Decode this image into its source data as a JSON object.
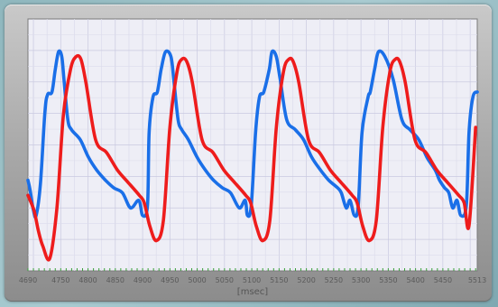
{
  "chart_data": {
    "type": "line",
    "title": "",
    "xlabel": "[msec]",
    "ylabel": "",
    "xlim": [
      4690,
      5513
    ],
    "ylim": [
      0,
      1
    ],
    "grid": true,
    "legend": "none",
    "x_ticks": [
      4690,
      4750,
      4800,
      4850,
      4900,
      4950,
      5000,
      5050,
      5100,
      5150,
      5200,
      5250,
      5300,
      5350,
      5400,
      5450,
      5513
    ],
    "series": [
      {
        "color": "#1a6fe8",
        "x": [
          4690,
          4694,
          4700,
          4705,
          4713,
          4721,
          4726,
          4734,
          4740,
          4746,
          4752,
          4756,
          4763,
          4770,
          4786,
          4801,
          4816,
          4832,
          4847,
          4863,
          4878,
          4893,
          4900,
          4909,
          4912,
          4919,
          4927,
          4934,
          4942,
          4952,
          4957,
          4965,
          4972,
          4984,
          5000,
          5015,
          5030,
          5046,
          5061,
          5077,
          5088,
          5092,
          5099,
          5107,
          5114,
          5122,
          5132,
          5137,
          5145,
          5152,
          5164,
          5180,
          5195,
          5210,
          5226,
          5241,
          5257,
          5264,
          5273,
          5280,
          5288,
          5295,
          5302,
          5313,
          5317,
          5325,
          5332,
          5344,
          5359,
          5375,
          5390,
          5406,
          5421,
          5436,
          5444,
          5453,
          5461,
          5468,
          5476,
          5483,
          5493,
          5498,
          5505,
          5513
        ],
        "y": [
          0.36,
          0.32,
          0.24,
          0.22,
          0.35,
          0.63,
          0.7,
          0.71,
          0.8,
          0.87,
          0.85,
          0.76,
          0.6,
          0.56,
          0.52,
          0.45,
          0.4,
          0.36,
          0.33,
          0.31,
          0.25,
          0.28,
          0.22,
          0.26,
          0.55,
          0.69,
          0.71,
          0.8,
          0.87,
          0.85,
          0.76,
          0.6,
          0.56,
          0.52,
          0.45,
          0.4,
          0.36,
          0.33,
          0.31,
          0.25,
          0.28,
          0.22,
          0.26,
          0.55,
          0.69,
          0.71,
          0.8,
          0.87,
          0.85,
          0.76,
          0.6,
          0.56,
          0.52,
          0.45,
          0.4,
          0.36,
          0.33,
          0.31,
          0.25,
          0.28,
          0.22,
          0.26,
          0.55,
          0.69,
          0.71,
          0.8,
          0.87,
          0.85,
          0.76,
          0.6,
          0.56,
          0.52,
          0.45,
          0.4,
          0.36,
          0.33,
          0.31,
          0.25,
          0.28,
          0.22,
          0.26,
          0.55,
          0.69,
          0.71
        ]
      },
      {
        "color": "#ee1c1c",
        "x": [
          4690,
          4701,
          4709,
          4717,
          4730,
          4743,
          4755,
          4768,
          4778,
          4787,
          4796,
          4814,
          4834,
          4854,
          4874,
          4894,
          4903,
          4913,
          4925,
          4938,
          4950,
          4963,
          4972,
          4981,
          4991,
          5009,
          5029,
          5049,
          5069,
          5089,
          5098,
          5108,
          5120,
          5133,
          5145,
          5158,
          5168,
          5176,
          5186,
          5204,
          5224,
          5244,
          5264,
          5284,
          5293,
          5303,
          5315,
          5328,
          5340,
          5353,
          5363,
          5371,
          5381,
          5399,
          5419,
          5439,
          5459,
          5479,
          5489,
          5498,
          5510
        ],
        "y": [
          0.3,
          0.24,
          0.16,
          0.1,
          0.05,
          0.25,
          0.62,
          0.8,
          0.85,
          0.84,
          0.75,
          0.52,
          0.47,
          0.4,
          0.35,
          0.3,
          0.27,
          0.18,
          0.12,
          0.2,
          0.57,
          0.79,
          0.84,
          0.83,
          0.75,
          0.52,
          0.47,
          0.4,
          0.35,
          0.3,
          0.27,
          0.18,
          0.12,
          0.2,
          0.57,
          0.79,
          0.84,
          0.83,
          0.75,
          0.52,
          0.47,
          0.4,
          0.35,
          0.3,
          0.27,
          0.18,
          0.12,
          0.2,
          0.57,
          0.79,
          0.84,
          0.83,
          0.75,
          0.52,
          0.47,
          0.4,
          0.35,
          0.3,
          0.27,
          0.18,
          0.57
        ]
      }
    ]
  }
}
